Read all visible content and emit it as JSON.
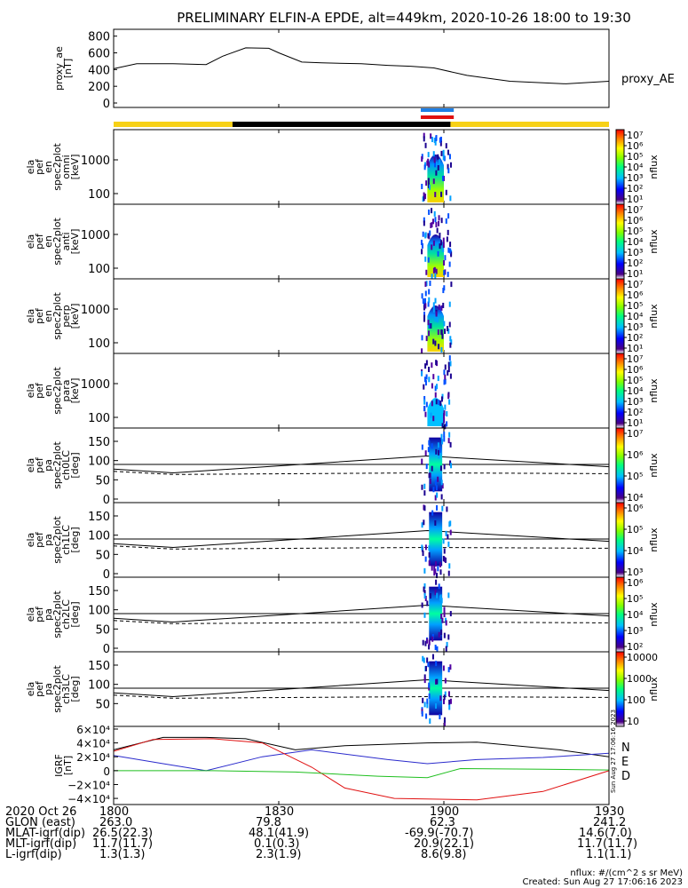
{
  "title": "PRELIMINARY ELFIN-A EPDE, alt=449km, 2020-10-26 18:00 to 19:30",
  "colors": {
    "yellow": "#f7d117",
    "black": "#000000",
    "blue": "#1e7fe6",
    "red": "#e01010",
    "grf_n": "#2a2acc",
    "grf_e": "#e01010",
    "grf_d": "#1fbf1f"
  },
  "chart_data": [
    {
      "type": "line",
      "panel": "proxy_ae",
      "ylabel": [
        "proxy_ae",
        "[nT]"
      ],
      "yticks": [
        "800",
        "600",
        "400",
        "200",
        "0"
      ],
      "ylim": [
        0,
        850
      ],
      "legend": "proxy_AE",
      "x": [
        18.0,
        18.07,
        18.18,
        18.28,
        18.33,
        18.4,
        18.47,
        18.5,
        18.57,
        18.63,
        18.75,
        18.83,
        18.9,
        18.97,
        19.07,
        19.2,
        19.37,
        19.5
      ],
      "values": [
        410,
        470,
        470,
        460,
        560,
        660,
        655,
        600,
        490,
        480,
        470,
        450,
        440,
        420,
        330,
        260,
        230,
        260
      ]
    },
    {
      "type": "bar",
      "panel": "status_bar",
      "segments": [
        {
          "color": "yellow",
          "from": 18.0,
          "to": 18.36
        },
        {
          "color": "black",
          "from": 18.36,
          "to": 19.02
        },
        {
          "color": "yellow",
          "from": 19.02,
          "to": 19.5
        }
      ],
      "markers": [
        {
          "color": "blue",
          "from": 18.93,
          "to": 19.03
        },
        {
          "color": "red",
          "from": 18.93,
          "to": 19.03
        }
      ]
    },
    {
      "type": "heatmap",
      "panel": "spec_omni",
      "ylabel": [
        "ela",
        "pef",
        "en",
        "spec2plot",
        "omni",
        "[keV]"
      ],
      "yticks": [
        "1000",
        "100"
      ],
      "zlabel": "nflux",
      "zticks": [
        "10⁷",
        "10⁶",
        "10⁵",
        "10⁴",
        "10³",
        "10²",
        "10¹"
      ]
    },
    {
      "type": "heatmap",
      "panel": "spec_anti",
      "ylabel": [
        "ela",
        "pef",
        "en",
        "spec2plot",
        "anti",
        "[keV]"
      ],
      "yticks": [
        "1000",
        "100"
      ],
      "zlabel": "nflux",
      "zticks": [
        "10⁷",
        "10⁶",
        "10⁵",
        "10⁴",
        "10³",
        "10²",
        "10¹"
      ]
    },
    {
      "type": "heatmap",
      "panel": "spec_perp",
      "ylabel": [
        "ela",
        "pef",
        "en",
        "spec2plot",
        "perp",
        "[keV]"
      ],
      "yticks": [
        "1000",
        "100"
      ],
      "zlabel": "nflux",
      "zticks": [
        "10⁷",
        "10⁶",
        "10⁵",
        "10⁴",
        "10³",
        "10²",
        "10¹"
      ]
    },
    {
      "type": "heatmap",
      "panel": "spec_para",
      "ylabel": [
        "ela",
        "pef",
        "en",
        "spec2plot",
        "para",
        "[keV]"
      ],
      "yticks": [
        "1000",
        "100"
      ],
      "zlabel": "nflux",
      "zticks": [
        "10⁷",
        "10⁶",
        "10⁵",
        "10⁴",
        "10³",
        "10²",
        "10¹"
      ]
    },
    {
      "type": "heatmap",
      "panel": "ch0LC",
      "ylabel": [
        "ela",
        "pef",
        "pa",
        "spec2plot",
        "ch0LC",
        "[deg]"
      ],
      "yticks": [
        "150",
        "100",
        "50",
        "0"
      ],
      "zlabel": "nflux",
      "zticks": [
        "10⁷",
        "10⁶",
        "10⁵",
        "10⁴"
      ]
    },
    {
      "type": "heatmap",
      "panel": "ch1LC",
      "ylabel": [
        "ela",
        "pef",
        "pa",
        "spec2plot",
        "ch1LC",
        "[deg]"
      ],
      "yticks": [
        "150",
        "100",
        "50",
        "0"
      ],
      "zlabel": "nflux",
      "zticks": [
        "10⁶",
        "10⁵",
        "10⁴",
        "10³"
      ]
    },
    {
      "type": "heatmap",
      "panel": "ch2LC",
      "ylabel": [
        "ela",
        "pef",
        "pa",
        "spec2plot",
        "ch2LC",
        "[deg]"
      ],
      "yticks": [
        "150",
        "100",
        "50",
        "0"
      ],
      "zlabel": "nflux",
      "zticks": [
        "10⁶",
        "10⁵",
        "10⁴",
        "10³",
        "10²"
      ]
    },
    {
      "type": "heatmap",
      "panel": "ch3LC",
      "ylabel": [
        "ela",
        "pef",
        "pa",
        "spec2plot",
        "ch3LC",
        "[deg]"
      ],
      "yticks": [
        "150",
        "100",
        "50"
      ],
      "zlabel": "nflux",
      "zticks": [
        "10000",
        "1000",
        "100",
        "10"
      ]
    },
    {
      "type": "line",
      "panel": "igrf",
      "ylabel": [
        "IGRF",
        "[nT]"
      ],
      "yticks": [
        "6×10⁴",
        "4×10⁴",
        "2×10⁴",
        "0",
        "−2×10⁴",
        "−4×10⁴"
      ],
      "ylim": [
        -45000,
        60000
      ],
      "series": [
        {
          "name": "N",
          "color": "grf_n"
        },
        {
          "name": "E",
          "color": "grf_e"
        },
        {
          "name": "D",
          "color": "grf_d"
        }
      ],
      "stamp": "Sun Aug 27 17:06:16 2023"
    }
  ],
  "footer": {
    "rows": [
      {
        "label": "2020 Oct 26",
        "values": [
          "1800",
          "1830",
          "1900",
          "1930"
        ]
      },
      {
        "label": "GLON (east)",
        "values": [
          "263.0",
          "79.8",
          "62.3",
          "241.2"
        ]
      },
      {
        "label": "MLAT-igrf(dip)",
        "values": [
          "26.5(22.3)",
          "48.1(41.9)",
          "-69.9(-70.7)",
          "14.6(7.0)"
        ]
      },
      {
        "label": "MLT-igrf(dip)",
        "values": [
          "11.7(11.7)",
          "0.1(0.3)",
          "20.9(22.1)",
          "11.7(11.7)"
        ]
      },
      {
        "label": "L-igrf(dip)",
        "values": [
          "1.3(1.3)",
          "2.3(1.9)",
          "8.6(9.8)",
          "1.1(1.1)"
        ]
      }
    ],
    "units": "nflux: #/(cm^2 s sr MeV)",
    "created": "Created: Sun Aug 27 17:06:16 2023"
  }
}
